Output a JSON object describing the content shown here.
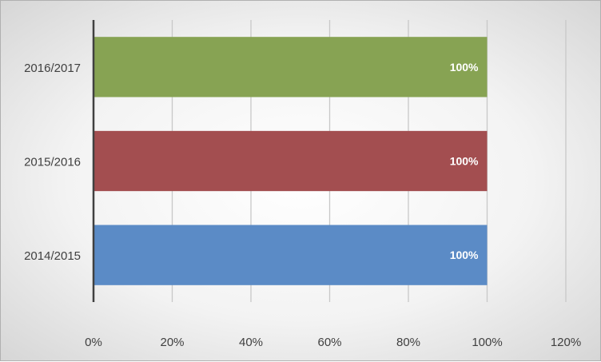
{
  "chart_data": {
    "type": "bar",
    "orientation": "horizontal",
    "categories": [
      "2014/2015",
      "2015/2016",
      "2016/2017"
    ],
    "values": [
      100,
      100,
      100
    ],
    "data_labels": [
      "100%",
      "100%",
      "100%"
    ],
    "bar_colors": [
      "#5b8bc6",
      "#a34e50",
      "#87a353"
    ],
    "x_ticks": [
      "0%",
      "20%",
      "40%",
      "60%",
      "80%",
      "100%",
      "120%"
    ],
    "xlim": [
      0,
      120
    ],
    "grid": "vertical",
    "title": "",
    "xlabel": "",
    "ylabel": ""
  }
}
